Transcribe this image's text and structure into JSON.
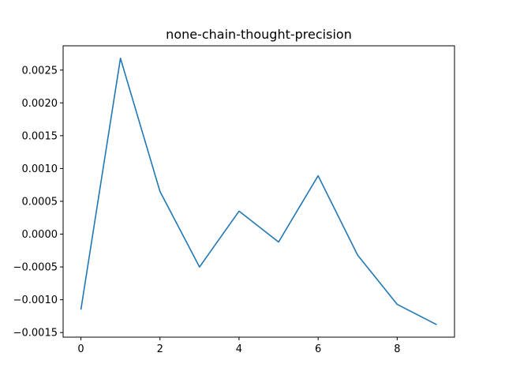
{
  "chart_data": {
    "type": "line",
    "title": "none-chain-thought-precision",
    "xlabel": "",
    "ylabel": "",
    "x": [
      0,
      1,
      2,
      3,
      4,
      5,
      6,
      7,
      8,
      9
    ],
    "series": [
      {
        "values": [
          -0.00115,
          0.00268,
          0.00065,
          -0.0005,
          0.00035,
          -0.00012,
          0.00089,
          -0.00032,
          -0.00107,
          -0.00138
        ],
        "color": "#1f77b4"
      }
    ],
    "xlim": [
      -0.45,
      9.45
    ],
    "ylim": [
      -0.00157,
      0.00287
    ],
    "x_ticks": [
      0,
      2,
      4,
      6,
      8
    ],
    "x_tick_labels": [
      "0",
      "2",
      "4",
      "6",
      "8"
    ],
    "y_ticks": [
      -0.0015,
      -0.001,
      -0.0005,
      0.0,
      0.0005,
      0.001,
      0.0015,
      0.002,
      0.0025
    ],
    "y_tick_labels": [
      "−0.0015",
      "−0.0010",
      "−0.0005",
      "0.0000",
      "0.0005",
      "0.0010",
      "0.0015",
      "0.0020",
      "0.0025"
    ],
    "grid": false,
    "legend": "none"
  }
}
